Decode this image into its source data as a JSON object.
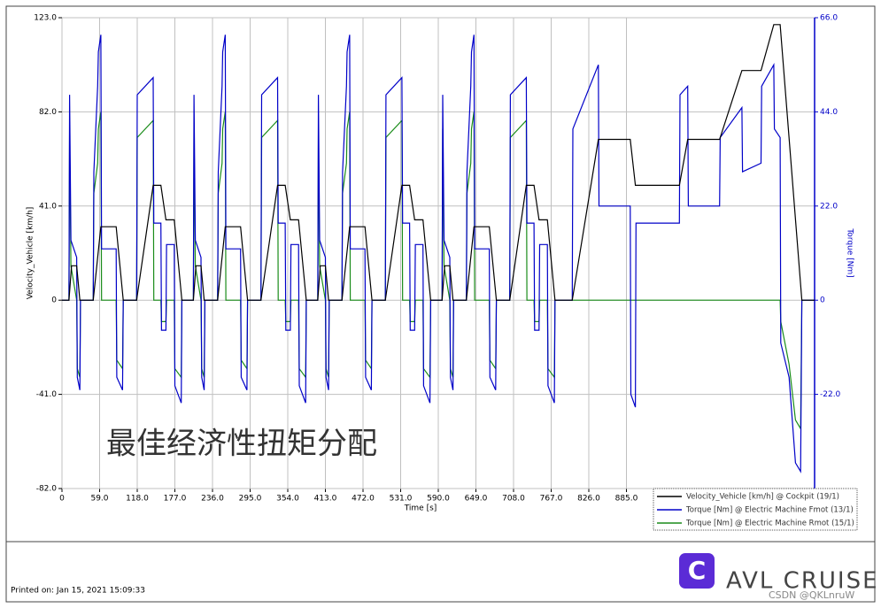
{
  "chart_data": {
    "type": "line",
    "xlabel": "Time [s]",
    "ylabel": "Velocity_Vehicle [km/h]",
    "y2label": "Torque [Nm]",
    "annotation": "最佳经济性扭矩分配",
    "footer": "Printed on: Jan 15, 2021 15:09:33",
    "brand": "AVL CRUISE",
    "brand_icon": "C",
    "watermark": "CSDN @QKLnruW",
    "grid": true,
    "legend": "lower right",
    "xlim": [
      0,
      1180
    ],
    "ylim": [
      -82,
      123
    ],
    "y2lim": [
      -44,
      66
    ],
    "xticks": [
      0,
      {
        "value": 59,
        "label": "59.0"
      },
      {
        "value": 118,
        "label": "118.0"
      },
      {
        "value": 177,
        "label": "177.0"
      },
      {
        "value": 236,
        "label": "236.0"
      },
      {
        "value": 295,
        "label": "295.0"
      },
      {
        "value": 354,
        "label": "354.0"
      },
      {
        "value": 413,
        "label": "413.0"
      },
      {
        "value": 472,
        "label": "472.0"
      },
      {
        "value": 531,
        "label": "531.0"
      },
      {
        "value": 590,
        "label": "590.0"
      },
      {
        "value": 649,
        "label": "649.0"
      },
      {
        "value": 708,
        "label": "708.0"
      },
      {
        "value": 767,
        "label": "767.0"
      },
      {
        "value": 826,
        "label": "826.0"
      },
      {
        "value": 885,
        "label": "885.0"
      }
    ],
    "yticks": [
      {
        "value": -82,
        "label": "-82.0"
      },
      {
        "value": -41,
        "label": "-41.0"
      },
      0,
      {
        "value": 41,
        "label": "41.0"
      },
      {
        "value": 82,
        "label": "82.0"
      },
      {
        "value": 123,
        "label": "123.0"
      }
    ],
    "y2ticks": [
      {
        "value": -22,
        "label": "-22.0"
      },
      0,
      {
        "value": 22,
        "label": "22.0"
      },
      {
        "value": 44,
        "label": "44.0"
      },
      {
        "value": 66,
        "label": "66.0"
      }
    ],
    "series": [
      {
        "name": "Velocity_Vehicle [km/h] @ Cockpit (19/1)",
        "color": "#000000",
        "axis": "y",
        "x": [
          0,
          11,
          15,
          23,
          28,
          49,
          61,
          85,
          96,
          117,
          143,
          155,
          163,
          176,
          188,
          195,
          206,
          210,
          218,
          223,
          244,
          256,
          280,
          291,
          312,
          338,
          350,
          358,
          371,
          383,
          390,
          401,
          405,
          413,
          418,
          439,
          451,
          475,
          486,
          507,
          533,
          545,
          553,
          566,
          578,
          585,
          596,
          600,
          608,
          613,
          634,
          646,
          670,
          681,
          702,
          728,
          740,
          748,
          761,
          773,
          800,
          841,
          891,
          899,
          968,
          981,
          1031,
          1066,
          1096,
          1116,
          1126,
          1160,
          1180
        ],
        "values": [
          0,
          0,
          15,
          15,
          0,
          0,
          32,
          32,
          0,
          0,
          50,
          50,
          35,
          35,
          0,
          0,
          0,
          15,
          15,
          0,
          0,
          32,
          32,
          0,
          0,
          50,
          50,
          35,
          35,
          0,
          0,
          0,
          15,
          15,
          0,
          0,
          32,
          32,
          0,
          0,
          50,
          50,
          35,
          35,
          0,
          0,
          0,
          15,
          15,
          0,
          0,
          32,
          32,
          0,
          0,
          50,
          50,
          35,
          35,
          0,
          0,
          70,
          70,
          50,
          50,
          70,
          70,
          100,
          100,
          120,
          120,
          0,
          0
        ]
      },
      {
        "name": "Torque [Nm] @ Electric Machine Fmot (13/1)",
        "color": "#0000c8",
        "axis": "y2",
        "x": [
          0,
          11,
          12,
          14,
          23,
          24,
          28,
          29,
          49,
          50,
          56,
          57,
          61,
          62,
          85,
          86,
          95,
          96,
          117,
          118,
          143,
          144,
          155,
          156,
          163,
          164,
          176,
          177,
          187,
          188,
          195,
          206,
          207,
          209,
          218,
          219,
          223,
          224,
          244,
          245,
          251,
          252,
          256,
          257,
          280,
          281,
          290,
          291,
          312,
          313,
          338,
          339,
          350,
          351,
          358,
          359,
          371,
          372,
          382,
          383,
          390,
          401,
          402,
          404,
          413,
          414,
          418,
          419,
          439,
          440,
          446,
          447,
          451,
          452,
          475,
          476,
          485,
          486,
          507,
          508,
          533,
          534,
          545,
          546,
          553,
          554,
          566,
          567,
          577,
          578,
          585,
          596,
          597,
          599,
          608,
          609,
          613,
          614,
          634,
          635,
          641,
          642,
          646,
          647,
          670,
          671,
          680,
          681,
          702,
          703,
          728,
          729,
          740,
          741,
          748,
          749,
          761,
          762,
          772,
          773,
          800,
          801,
          841,
          842,
          891,
          892,
          899,
          900,
          968,
          969,
          981,
          982,
          1031,
          1032,
          1066,
          1067,
          1096,
          1097,
          1116,
          1117,
          1126,
          1127,
          1140,
          1150,
          1158,
          1160,
          1180
        ],
        "values": [
          0,
          0,
          48,
          14,
          10,
          -18,
          -21,
          0,
          0,
          30,
          50,
          58,
          62,
          12,
          12,
          -18,
          -21,
          0,
          0,
          48,
          52,
          18,
          18,
          -7,
          -7,
          13,
          13,
          -20,
          -24,
          0,
          0,
          0,
          48,
          14,
          10,
          -18,
          -21,
          0,
          0,
          30,
          50,
          58,
          62,
          12,
          12,
          -18,
          -21,
          0,
          0,
          48,
          52,
          18,
          18,
          -7,
          -7,
          13,
          13,
          -20,
          -24,
          0,
          0,
          0,
          48,
          14,
          10,
          -18,
          -21,
          0,
          0,
          30,
          50,
          58,
          62,
          12,
          12,
          -18,
          -21,
          0,
          0,
          48,
          52,
          18,
          18,
          -7,
          -7,
          13,
          13,
          -20,
          -24,
          0,
          0,
          0,
          48,
          14,
          10,
          -18,
          -21,
          0,
          0,
          30,
          50,
          58,
          62,
          12,
          12,
          -18,
          -21,
          0,
          0,
          48,
          52,
          18,
          18,
          -7,
          -7,
          13,
          13,
          -20,
          -24,
          0,
          0,
          40,
          55,
          22,
          22,
          -22,
          -25,
          18,
          18,
          48,
          50,
          22,
          22,
          38,
          45,
          30,
          32,
          50,
          55,
          40,
          38,
          -10,
          -18,
          -38,
          -40,
          0,
          0
        ]
      },
      {
        "name": "Torque [Nm] @ Electric Machine Rmot (15/1)",
        "color": "#1a8c1a",
        "axis": "y2",
        "x": [
          0,
          11,
          12,
          14,
          23,
          24,
          28,
          29,
          49,
          50,
          56,
          57,
          61,
          62,
          85,
          86,
          95,
          96,
          117,
          118,
          143,
          144,
          155,
          156,
          163,
          164,
          176,
          177,
          187,
          188,
          195,
          206,
          207,
          209,
          218,
          219,
          223,
          224,
          244,
          245,
          251,
          252,
          256,
          257,
          280,
          281,
          290,
          291,
          312,
          313,
          338,
          339,
          350,
          351,
          358,
          359,
          371,
          372,
          382,
          383,
          390,
          401,
          402,
          404,
          413,
          414,
          418,
          419,
          439,
          440,
          446,
          447,
          451,
          452,
          475,
          476,
          485,
          486,
          507,
          508,
          533,
          534,
          545,
          546,
          553,
          554,
          566,
          567,
          577,
          578,
          585,
          596,
          597,
          599,
          608,
          609,
          613,
          614,
          634,
          635,
          641,
          642,
          646,
          647,
          670,
          671,
          680,
          681,
          702,
          703,
          728,
          729,
          740,
          741,
          748,
          749,
          761,
          762,
          772,
          773,
          800,
          801,
          841,
          842,
          891,
          892,
          899,
          900,
          968,
          969,
          981,
          982,
          1031,
          1032,
          1066,
          1067,
          1096,
          1097,
          1116,
          1117,
          1126,
          1127,
          1140,
          1150,
          1158,
          1160,
          1180
        ],
        "values": [
          0,
          0,
          40,
          8,
          0,
          -16,
          -18,
          0,
          0,
          25,
          32,
          40,
          44,
          0,
          0,
          -14,
          -16,
          0,
          0,
          38,
          42,
          0,
          0,
          -5,
          -5,
          0,
          0,
          -16,
          -18,
          0,
          0,
          0,
          40,
          8,
          0,
          -16,
          -18,
          0,
          0,
          25,
          32,
          40,
          44,
          0,
          0,
          -14,
          -16,
          0,
          0,
          38,
          42,
          0,
          0,
          -5,
          -5,
          0,
          0,
          -16,
          -18,
          0,
          0,
          0,
          40,
          8,
          0,
          -16,
          -18,
          0,
          0,
          25,
          32,
          40,
          44,
          0,
          0,
          -14,
          -16,
          0,
          0,
          38,
          42,
          0,
          0,
          -5,
          -5,
          0,
          0,
          -16,
          -18,
          0,
          0,
          0,
          40,
          8,
          0,
          -16,
          -18,
          0,
          0,
          25,
          32,
          40,
          44,
          0,
          0,
          -14,
          -16,
          0,
          0,
          38,
          42,
          0,
          0,
          -5,
          -5,
          0,
          0,
          -16,
          -18,
          0,
          0,
          0,
          0,
          0,
          0,
          0,
          0,
          0,
          0,
          0,
          0,
          0,
          0,
          0,
          0,
          0,
          0,
          0,
          0,
          0,
          0,
          -5,
          -15,
          -28,
          -30,
          0,
          0
        ]
      }
    ]
  }
}
